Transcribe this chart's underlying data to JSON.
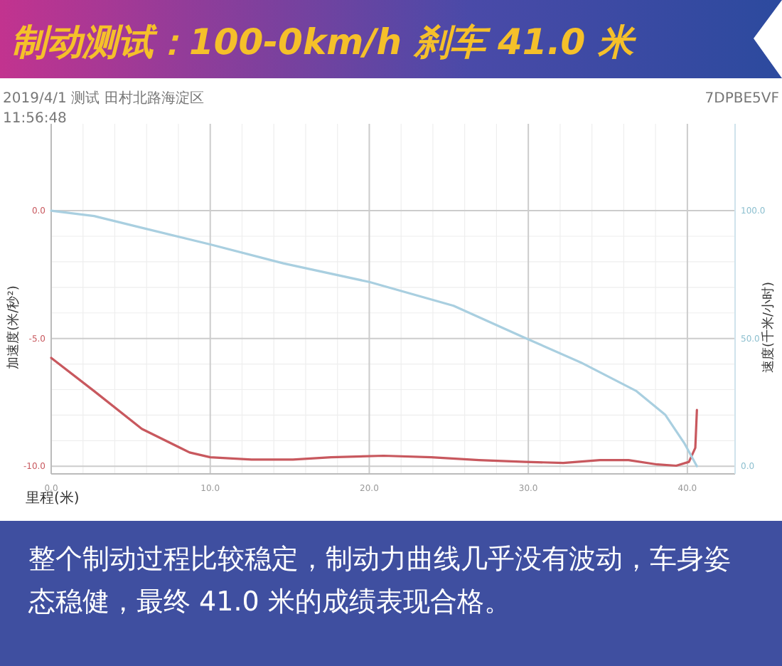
{
  "chart_data": {
    "type": "line",
    "title": "制动测试：100-0km/h 刹车 41.0 米",
    "subtitle": "2019/4/1 测试 田村北路海淀区",
    "annotations": [
      "11:56:48",
      "7DPBE5VF",
      "整个制动过程比较稳定，制动力曲线几乎没有波动，车身姿态稳健，最终 41.0 米的成绩表现合格。"
    ],
    "xlabel": "里程(米)",
    "ylabel": "加速度(米/秒²)",
    "y2label": "速度(千米/小时)",
    "xlim": [
      0,
      43
    ],
    "xticks": [
      {
        "value": 0,
        "label": "0.0"
      },
      {
        "value": 10,
        "label": "10.0"
      },
      {
        "value": 20,
        "label": "20.0"
      },
      {
        "value": 30,
        "label": "30.0"
      },
      {
        "value": 40,
        "label": "40.0"
      }
    ],
    "ylim": [
      -10.3,
      3.4
    ],
    "yticks": [
      {
        "value": 0,
        "label": "0.0"
      },
      {
        "value": -5,
        "label": "-5.0"
      },
      {
        "value": -10,
        "label": "-10.0"
      }
    ],
    "y2lim": [
      -3,
      134
    ],
    "y2ticks": [
      {
        "value": 0,
        "label": "0.0"
      },
      {
        "value": 50,
        "label": "50.0"
      },
      {
        "value": 100,
        "label": "100.0"
      }
    ],
    "grid": true,
    "series": [
      {
        "color": "#c8585e",
        "x": [
          0,
          2.7,
          5.7,
          8.7,
          10,
          12.6,
          15.2,
          17.6,
          20.9,
          23.9,
          26.9,
          29.8,
          32.2,
          34.5,
          36.3,
          38.1,
          39.3,
          40.1,
          40.5,
          40.6
        ],
        "values": [
          -5.76,
          -7.06,
          -8.54,
          -9.46,
          -9.65,
          -9.74,
          -9.74,
          -9.65,
          -9.59,
          -9.65,
          -9.76,
          -9.83,
          -9.87,
          -9.76,
          -9.76,
          -9.93,
          -9.98,
          -9.83,
          -9.28,
          -7.8
        ]
      },
      {
        "color": "#a9cfe0",
        "axis": "y2",
        "x": [
          0,
          2.7,
          5.7,
          10,
          14.6,
          20,
          25.3,
          29.8,
          33.3,
          36.8,
          38.6,
          39.8,
          40.6
        ],
        "values": [
          100,
          97.9,
          93.3,
          86.8,
          79.4,
          72.1,
          62.8,
          50.2,
          40.6,
          29.4,
          20.2,
          9.1,
          0
        ]
      }
    ]
  }
}
